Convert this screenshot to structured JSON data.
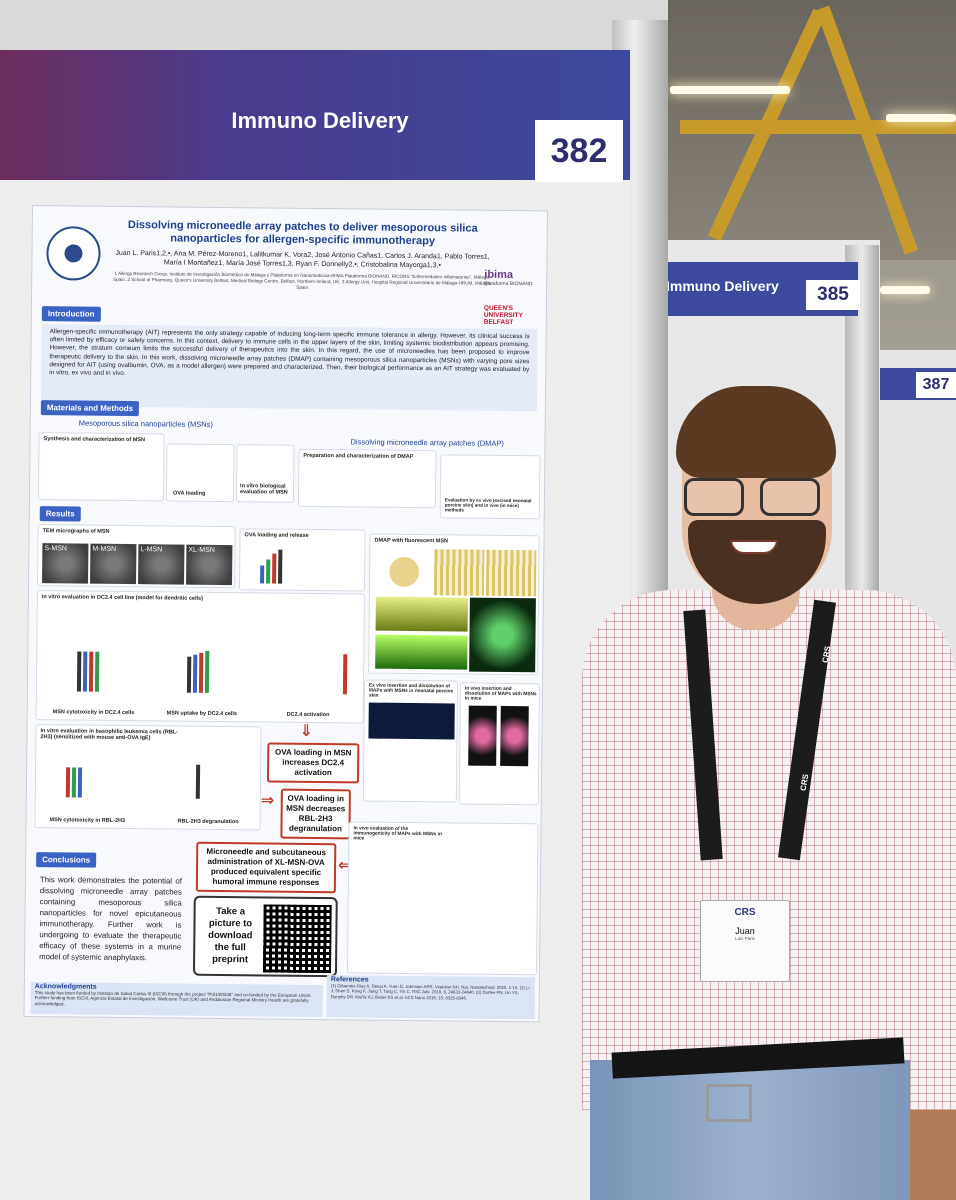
{
  "main_board": {
    "session_title": "Immuno Delivery",
    "poster_number": "382"
  },
  "side_boards": [
    {
      "session_title": "Immuno Delivery",
      "poster_number": "385"
    },
    {
      "poster_number": "387"
    }
  ],
  "poster": {
    "title": "Dissolving microneedle array patches to deliver mesoporous silica nanoparticles for allergen-specific immunotherapy",
    "authors": "Juan L. Paris1,2,•, Ana M. Pérez-Moreno1, Lalitkumar K. Vora2, José Antonio Cañas1, Carlos J. Aranda1, Pablo Torres1, María I Montañez1, María José Torres1,3, Ryan F. Donnelly2,•, Cristobalina Mayorga1,3,•",
    "affiliations": "1 Allergy Research Group, Instituto de Investigación Biomédica de Málaga y Plataforma en Nanomedicina-IBIMA Plataforma BIONAND. RICORS \"Enfermedades inflamatorias\", Málaga, Spain. 2 School of Pharmacy, Queen's University Belfast, Medical Biology Centre, Belfast, Northern Ireland, UK. 3 Allergy Unit, Hospital Regional Universitario de Málaga-HRUM, Málaga, Spain",
    "logos": {
      "ibima": "ibima",
      "ibima_sub": "Plataforma BIONAND",
      "qub": "QUEEN'S UNIVERSITY BELFAST"
    },
    "intro_label": "Introduction",
    "intro_text": "Allergen-specific immunotherapy (AIT) represents the only strategy capable of inducing long-term specific immune tolerance in allergy. However, its clinical success is often limited by efficacy or safety concerns. In this context, delivery to immune cells in the upper layers of the skin, limiting systemic biodistribution appears promising. However, the stratum corneum limits the successful delivery of therapeutics into the skin. In this regard, the use of microneedles has been proposed to improve therapeutic delivery to the skin. In this work, dissolving microneedle array patches (DMAP) containing mesoporous silica nanoparticles (MSNs) with varying pore sizes designed for AIT (using ovalbumin, OVA, as a model allergen) were prepared and characterized. Then, their biological performance as an AIT strategy was evaluated by in vitro, ex vivo and in vivo.",
    "methods_label": "Materials and Methods",
    "msn_label": "Mesoporous silica nanoparticles (MSNs)",
    "dmap_label": "Dissolving microneedle array patches (DMAP)",
    "synthesis_caption": "Synthesis and characterization of MSN",
    "ova_loading_caption": "OVA loading",
    "bio_eval_caption": "In vitro biological evaluation of MSN",
    "dmap_prep_caption": "Preparation and characterization of DMAP",
    "ex_vivo_caption": "Evaluation by ex vivo (excised neonatal porcine skin) and in vivo (in mice) methods",
    "results_label": "Results",
    "tem_caption": "TEM micrographs of MSN",
    "tem_labels": [
      "S-MSN",
      "M-MSN",
      "L-MSN",
      "XL-MSN"
    ],
    "ova_release_caption": "OVA loading and release",
    "dmap_fluor_caption": "DMAP with fluorescent MSN",
    "dc24_caption": "In vitro evaluation in DC2.4 cell line (model for dendritic cells)",
    "cytotox_caption": "MSN cytotoxicity in DC2.4 cells",
    "uptake_caption": "MSN uptake by DC2.4 cells",
    "activation_caption": "DC2.4 activation",
    "rbl_caption": "In vitro evaluation in basophilic leukemia cells (RBL-2H3) (sensitized with mouse anti-OVA IgE)",
    "rbl_cytotox_caption": "MSN cytotoxicity in RBL-2H3",
    "rbl_degran_caption": "RBL-2H3 degranulation",
    "exvivo_insert_caption": "Ex vivo insertion and dissolution of MAPs with MSNs in neonatal porcine skin",
    "invivo_insert_caption": "In vivo insertion and dissolution of MAPs with MSNs in mice",
    "invivo_immuno_caption": "In vivo evaluation of the immunogenicity of MAPs with MSNs in mice",
    "callouts": [
      "OVA loading in MSN increases DC2.4 activation",
      "OVA loading in MSN decreases RBL-2H3 degranulation",
      "Microneedle and subcutaneous administration of XL-MSN-OVA produced equivalent specific humoral immune responses"
    ],
    "conclusions_label": "Conclusions",
    "conclusions_text": "This work demonstrates the potential of dissolving microneedle array patches containing mesoporous silica nanoparticles for novel epicutaneous immunotherapy. Further work is undergoing to evaluate the therapeutic efficacy of these systems in a murine model of systemic anaphylaxis.",
    "preprint_text": "Take a picture to download the full preprint",
    "ack_label": "Acknowledgments",
    "ack_text": "This study has been funded by Instituto de Salud Carlos III (ISCIII) through the project \"PI21/00346\" and co-funded by the European Union. Further funding from ISCIII, Agencia Estatal de Investigación, Wellcome Trust (UK) and Andalusian Regional Ministry Health are gratefully acknowledged.",
    "refs_label": "References",
    "refs_text": "(1) Cifuentes-Rius A, Desai A, Yuen D, Johnston APR, Voelcker NH. Nat. Nanotechnol. 2020, 1-10. (2) Li J, Shen S, Kong F, Jiang T, Tang C, Yin C. RSC Adv. 2018, 8, 24633-24640. (3) Durfee PN, Lin YS, Dunphy DR, Muñiz AJ, Butler KS et al. ACS Nano 2016, 10, 8325-8345."
  },
  "badge": {
    "logo": "CRS",
    "name": "Juan",
    "sub": "Luis Paris"
  },
  "lanyard_text": "CRS",
  "colors": {
    "header_purple": "#4a3a8c",
    "section_blue": "#3b63c4",
    "callout_red": "#c0392b"
  }
}
